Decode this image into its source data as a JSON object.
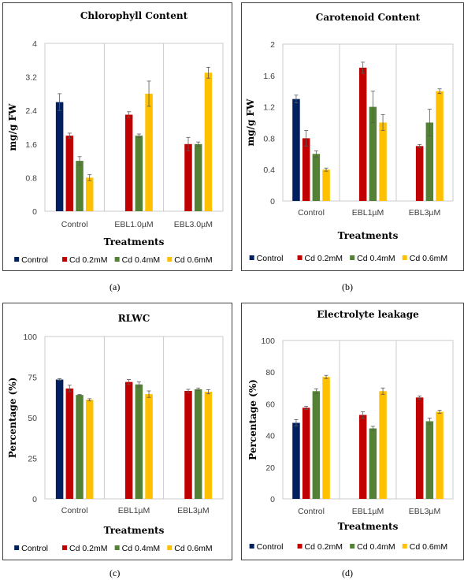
{
  "captions": [
    "(a)",
    "(b)",
    "(c)",
    "(d)"
  ],
  "chart_data": [
    {
      "type": "bar",
      "title": "Chlorophyll Content",
      "xlabel": "Treatments",
      "ylabel": "mg/g FW",
      "ylim": [
        0,
        4
      ],
      "yticks": [
        "0",
        "0.8",
        "1.6",
        "2.4",
        "3.2",
        "4"
      ],
      "categories": [
        "Control",
        "EBL1.0µM",
        "EBL3.0µM"
      ],
      "legend_position": "bottom",
      "grid": false,
      "series": [
        {
          "name": "Control",
          "color": "#002060",
          "values": [
            2.6,
            null,
            null
          ],
          "errors": [
            0.2,
            null,
            null
          ]
        },
        {
          "name": "Cd 0.2mM",
          "color": "#C00000",
          "values": [
            1.8,
            2.3,
            1.6
          ],
          "errors": [
            0.06,
            0.07,
            0.16
          ]
        },
        {
          "name": "Cd 0.4mM",
          "color": "#548235",
          "values": [
            1.2,
            1.8,
            1.6
          ],
          "errors": [
            0.1,
            0.04,
            0.05
          ]
        },
        {
          "name": "Cd 0.6mM",
          "color": "#FFC000",
          "values": [
            0.8,
            2.8,
            3.3
          ],
          "errors": [
            0.07,
            0.3,
            0.13
          ]
        }
      ]
    },
    {
      "type": "bar",
      "title": "Carotenoid Content",
      "xlabel": "Treatments",
      "ylabel": "mg/g FW",
      "ylim": [
        0,
        2
      ],
      "yticks": [
        "0",
        "0.4",
        "0.8",
        "1.2",
        "1.6",
        "2"
      ],
      "categories": [
        "Control",
        "EBL1µM",
        "EBL3µM"
      ],
      "legend_position": "bottom",
      "grid": false,
      "series": [
        {
          "name": "Control",
          "color": "#002060",
          "values": [
            1.3,
            null,
            null
          ],
          "errors": [
            0.05,
            null,
            null
          ]
        },
        {
          "name": "Cd 0.2mM",
          "color": "#C00000",
          "values": [
            0.8,
            1.7,
            0.7
          ],
          "errors": [
            0.1,
            0.07,
            0.02
          ]
        },
        {
          "name": "Cd 0.4mM",
          "color": "#548235",
          "values": [
            0.6,
            1.2,
            1.0
          ],
          "errors": [
            0.04,
            0.2,
            0.17
          ]
        },
        {
          "name": "Cd 0.6mM",
          "color": "#FFC000",
          "values": [
            0.4,
            1.0,
            1.4
          ],
          "errors": [
            0.02,
            0.1,
            0.03
          ]
        }
      ]
    },
    {
      "type": "bar",
      "title": "RLWC",
      "xlabel": "Treatments",
      "ylabel": "Percentage (%)",
      "ylim": [
        0,
        100
      ],
      "yticks": [
        "0",
        "25",
        "50",
        "75",
        "100"
      ],
      "categories": [
        "Control",
        "EBL1µM",
        "EBL3µM"
      ],
      "legend_position": "bottom",
      "grid": false,
      "series": [
        {
          "name": "Control",
          "color": "#002060",
          "values": [
            73.5,
            null,
            null
          ],
          "errors": [
            0.5,
            null,
            null
          ]
        },
        {
          "name": "Cd 0.2mM",
          "color": "#C00000",
          "values": [
            68,
            72,
            66.5
          ],
          "errors": [
            2,
            1.5,
            1
          ]
        },
        {
          "name": "Cd 0.4mM",
          "color": "#548235",
          "values": [
            64,
            70.5,
            67.5
          ],
          "errors": [
            0.3,
            1.5,
            0.8
          ]
        },
        {
          "name": "Cd 0.6mM",
          "color": "#FFC000",
          "values": [
            61,
            64.5,
            66
          ],
          "errors": [
            0.7,
            2,
            1.3
          ]
        }
      ]
    },
    {
      "type": "bar",
      "title": "Electrolyte leakage",
      "xlabel": "Treatments",
      "ylabel": "Percentage (%)",
      "ylim": [
        0,
        100
      ],
      "yticks": [
        "0",
        "20",
        "40",
        "60",
        "80",
        "100"
      ],
      "categories": [
        "Control",
        "EBL1µM",
        "EBL3µM"
      ],
      "legend_position": "bottom",
      "grid": false,
      "series": [
        {
          "name": "Control",
          "color": "#002060",
          "values": [
            48,
            null,
            null
          ],
          "errors": [
            2,
            null,
            null
          ]
        },
        {
          "name": "Cd 0.2mM",
          "color": "#C00000",
          "values": [
            57.5,
            53,
            64
          ],
          "errors": [
            1,
            2,
            1
          ]
        },
        {
          "name": "Cd 0.4mM",
          "color": "#548235",
          "values": [
            68,
            44.5,
            49
          ],
          "errors": [
            1.5,
            1.3,
            2
          ]
        },
        {
          "name": "Cd 0.6mM",
          "color": "#FFC000",
          "values": [
            77,
            68,
            55
          ],
          "errors": [
            1,
            2,
            1
          ]
        }
      ]
    }
  ]
}
